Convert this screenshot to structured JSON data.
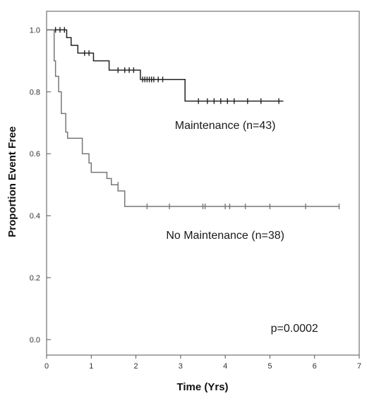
{
  "chart_data": {
    "type": "line",
    "subtype": "kaplan-meier step curves with censor marks",
    "xlabel": "Time (Yrs)",
    "ylabel": "Proportion Event Free",
    "xlim": [
      0,
      7
    ],
    "ylim": [
      -0.05,
      1.06
    ],
    "x_ticks": [
      0,
      1,
      2,
      3,
      4,
      5,
      6,
      7
    ],
    "x_tick_labels": [
      "0",
      "1",
      "2",
      "3",
      "4",
      "5",
      "6",
      "7"
    ],
    "y_ticks": [
      0.0,
      0.2,
      0.4,
      0.6,
      0.8,
      1.0
    ],
    "y_tick_labels": [
      "0.0",
      "0.2",
      "0.4",
      "0.6",
      "0.8",
      "1.0"
    ],
    "grid": false,
    "legend": "none",
    "series": [
      {
        "name": "Maintenance (n=43)",
        "color": "#222222",
        "steps": [
          [
            0,
            1.0
          ],
          [
            0.45,
            0.975
          ],
          [
            0.55,
            0.95
          ],
          [
            0.7,
            0.925
          ],
          [
            1.05,
            0.9
          ],
          [
            1.4,
            0.87
          ],
          [
            2.1,
            0.84
          ],
          [
            3.1,
            0.77
          ],
          [
            5.3,
            0.77
          ]
        ],
        "censored": [
          [
            0.2,
            1.0
          ],
          [
            0.3,
            1.0
          ],
          [
            0.4,
            1.0
          ],
          [
            0.85,
            0.925
          ],
          [
            0.95,
            0.925
          ],
          [
            1.6,
            0.87
          ],
          [
            1.75,
            0.87
          ],
          [
            1.85,
            0.87
          ],
          [
            1.95,
            0.87
          ],
          [
            2.15,
            0.84
          ],
          [
            2.2,
            0.84
          ],
          [
            2.25,
            0.84
          ],
          [
            2.3,
            0.84
          ],
          [
            2.35,
            0.84
          ],
          [
            2.4,
            0.84
          ],
          [
            2.5,
            0.84
          ],
          [
            2.6,
            0.84
          ],
          [
            3.4,
            0.77
          ],
          [
            3.6,
            0.77
          ],
          [
            3.75,
            0.77
          ],
          [
            3.9,
            0.77
          ],
          [
            4.05,
            0.77
          ],
          [
            4.2,
            0.77
          ],
          [
            4.5,
            0.77
          ],
          [
            4.8,
            0.77
          ],
          [
            5.2,
            0.77
          ]
        ]
      },
      {
        "name": "No Maintenance (n=38)",
        "color": "#777777",
        "steps": [
          [
            0,
            1.0
          ],
          [
            0.17,
            0.9
          ],
          [
            0.2,
            0.85
          ],
          [
            0.27,
            0.8
          ],
          [
            0.33,
            0.73
          ],
          [
            0.43,
            0.67
          ],
          [
            0.47,
            0.65
          ],
          [
            0.8,
            0.6
          ],
          [
            0.95,
            0.57
          ],
          [
            1.0,
            0.54
          ],
          [
            1.35,
            0.52
          ],
          [
            1.45,
            0.5
          ],
          [
            1.6,
            0.48
          ],
          [
            1.75,
            0.43
          ],
          [
            6.55,
            0.43
          ]
        ],
        "censored": [
          [
            1.6,
            0.5
          ],
          [
            2.25,
            0.43
          ],
          [
            2.75,
            0.43
          ],
          [
            3.5,
            0.43
          ],
          [
            3.55,
            0.43
          ],
          [
            4.0,
            0.43
          ],
          [
            4.1,
            0.43
          ],
          [
            4.45,
            0.43
          ],
          [
            5.0,
            0.43
          ],
          [
            5.8,
            0.43
          ],
          [
            6.55,
            0.43
          ]
        ]
      }
    ],
    "annotations": [
      {
        "text": "Maintenance (n=43)",
        "x": 4.0,
        "y": 0.68
      },
      {
        "text": "No Maintenance (n=38)",
        "x": 4.0,
        "y": 0.325
      },
      {
        "text": "p=0.0002",
        "x": 5.55,
        "y": 0.025
      }
    ]
  }
}
